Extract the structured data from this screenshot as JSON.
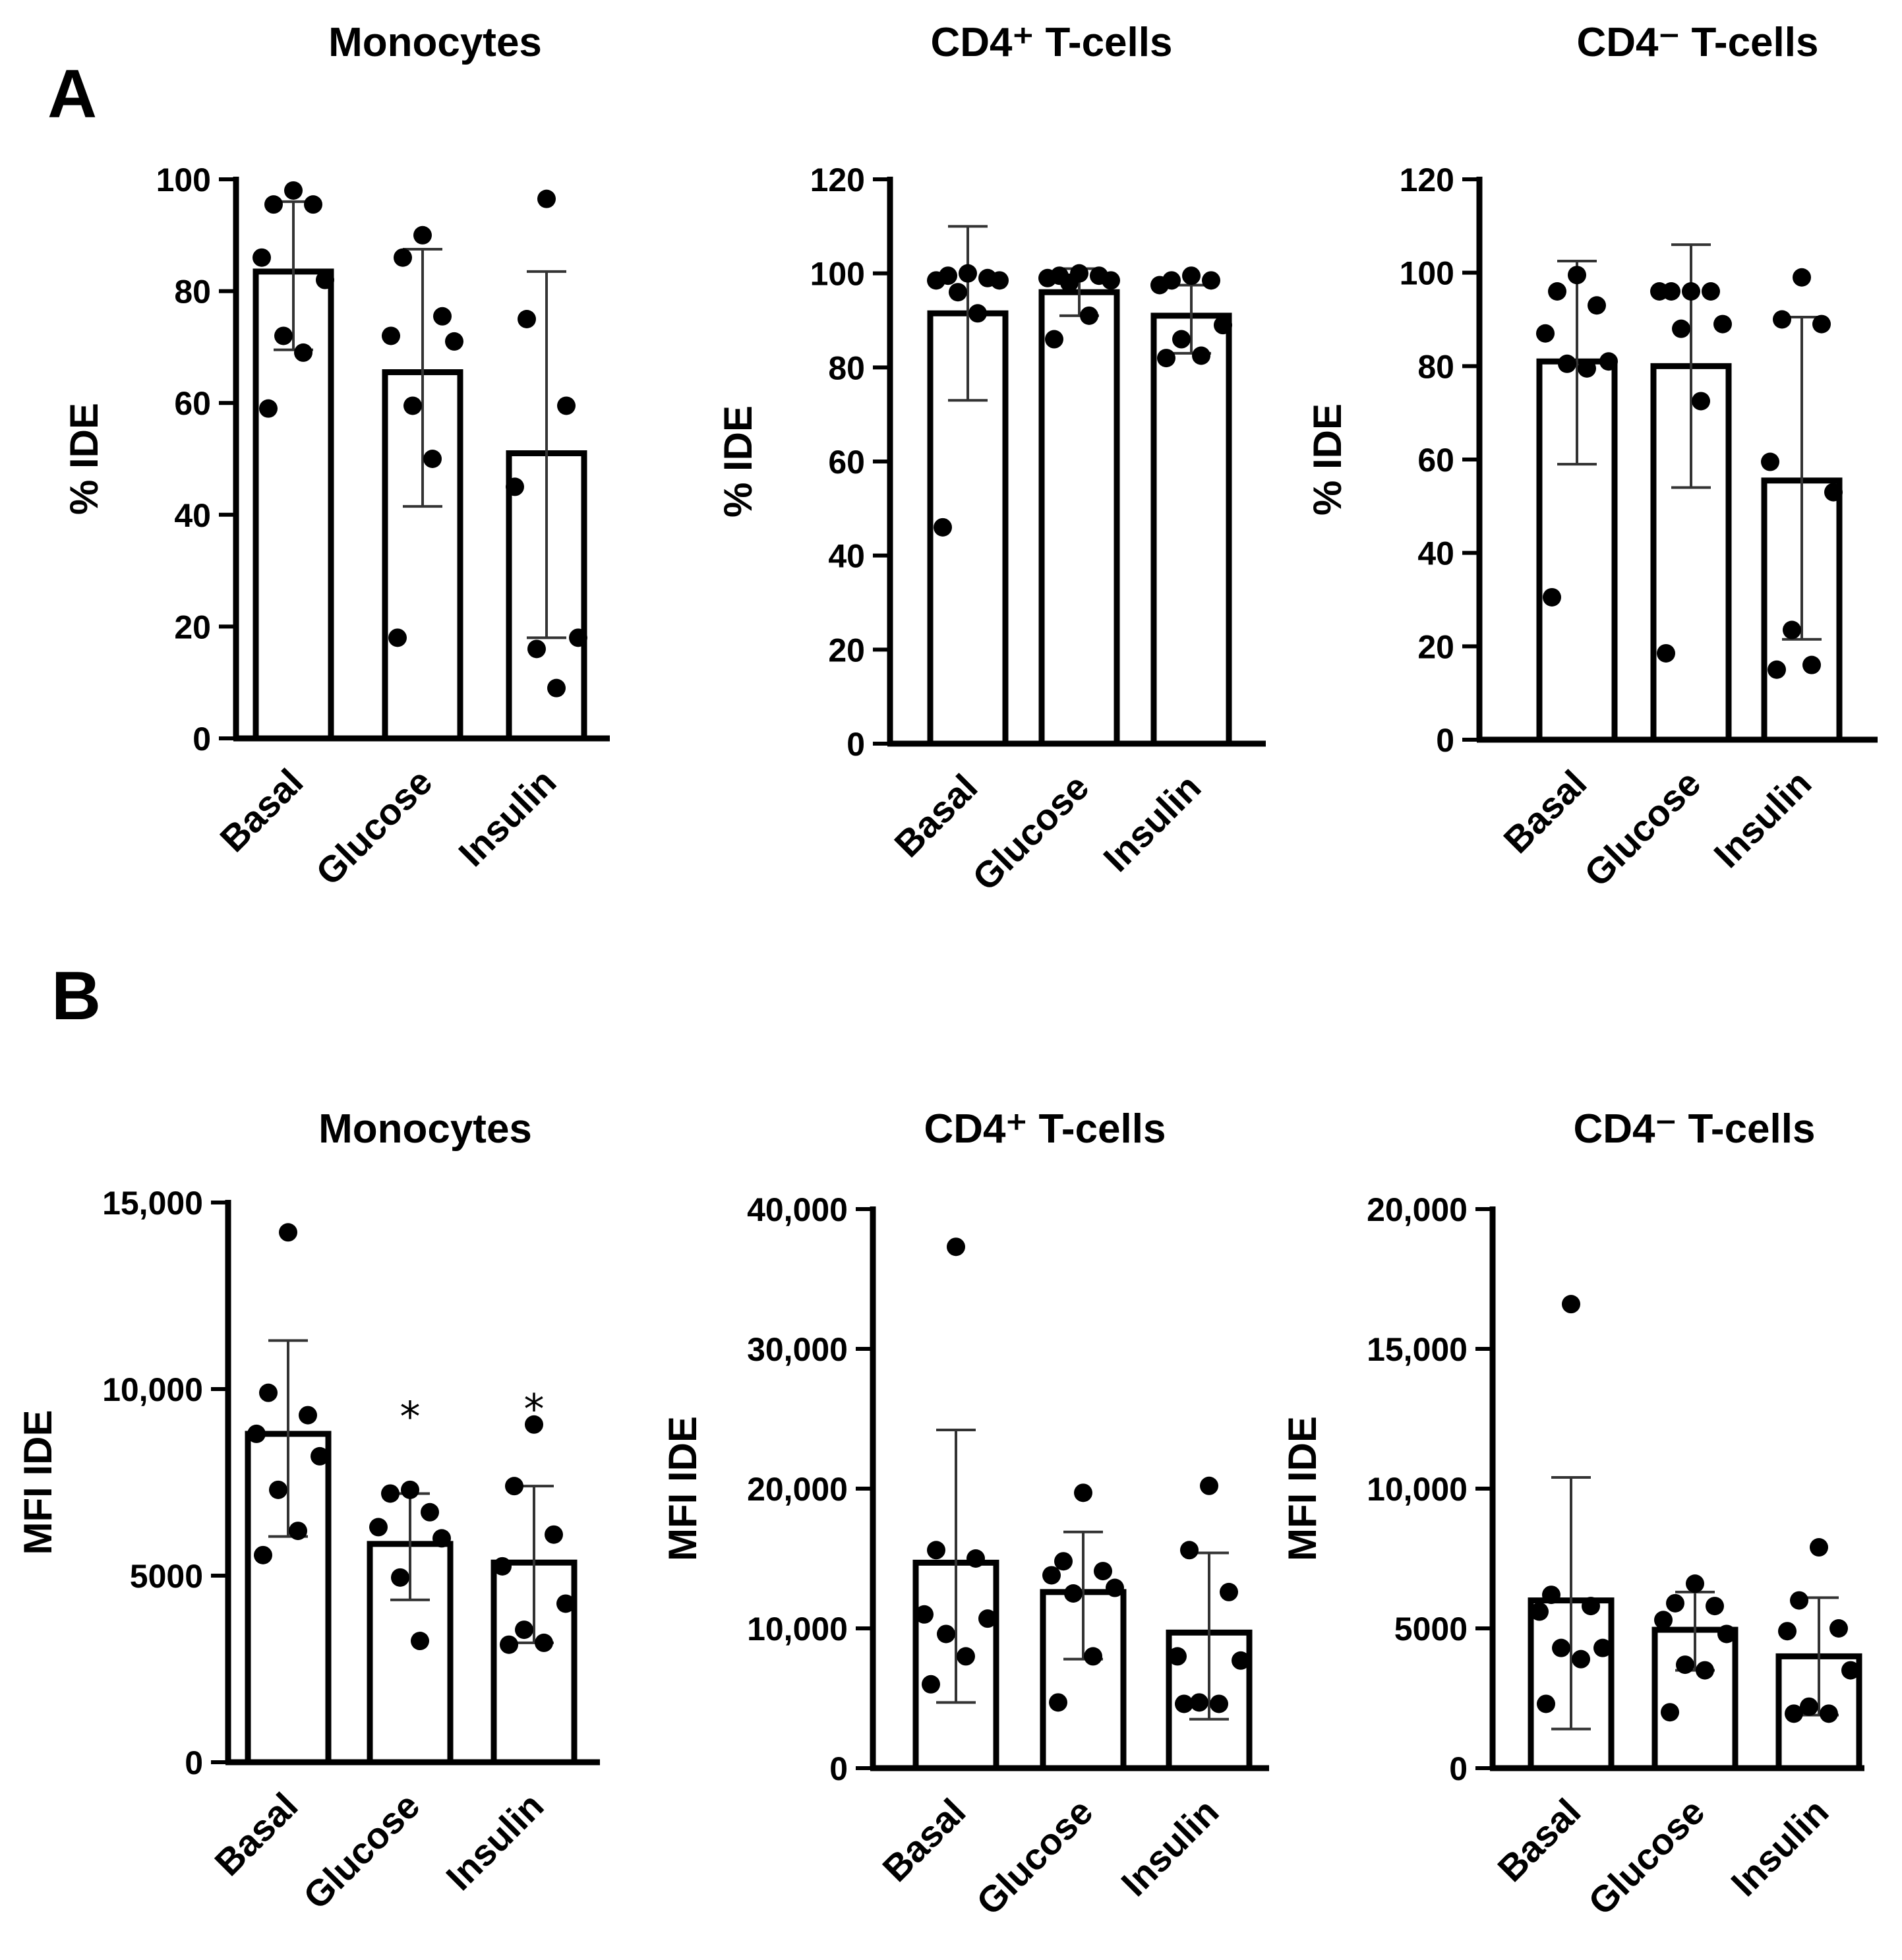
{
  "panels": {
    "a": "A",
    "b": "B"
  },
  "chart_data": [
    {
      "type": "bar",
      "panel": "A",
      "title": "Monocytes",
      "ylabel": "% IDE",
      "ylim": [
        0,
        100
      ],
      "yticks": [
        0,
        20,
        40,
        60,
        80,
        100
      ],
      "ytick_labels": [
        "0",
        "20",
        "40",
        "60",
        "80",
        "100"
      ],
      "categories": [
        "Basal",
        "Glucose",
        "Insulin"
      ],
      "values": [
        83.5,
        65.5,
        51
      ],
      "error_upper": [
        96,
        87.5,
        83.5
      ],
      "error_lower": [
        69.5,
        41.5,
        18
      ],
      "points": [
        [
          98,
          95.5,
          95.5,
          86,
          82,
          72,
          69,
          59
        ],
        [
          90,
          86,
          75.5,
          72,
          71,
          59.5,
          50,
          18
        ],
        [
          96.5,
          75,
          59.5,
          45,
          18,
          16,
          9
        ]
      ],
      "significance": [
        "",
        "",
        ""
      ]
    },
    {
      "type": "bar",
      "panel": "A",
      "title": "CD4⁺ T-cells",
      "ylabel": "% IDE",
      "ylim": [
        0,
        120
      ],
      "yticks": [
        0,
        20,
        40,
        60,
        80,
        100,
        120
      ],
      "ytick_labels": [
        "0",
        "20",
        "40",
        "60",
        "80",
        "100",
        "120"
      ],
      "categories": [
        "Basal",
        "Glucose",
        "Insulin"
      ],
      "values": [
        91.5,
        96,
        91
      ],
      "error_upper": [
        110,
        101,
        97.5
      ],
      "error_lower": [
        73,
        91,
        83
      ],
      "points": [
        [
          100,
          99.5,
          99,
          98.5,
          98.5,
          96,
          91.5,
          46
        ],
        [
          100,
          99.5,
          99.5,
          99,
          98.5,
          98,
          91,
          86
        ],
        [
          99.5,
          98.5,
          98.5,
          97.5,
          89,
          86,
          82.5,
          82
        ]
      ],
      "significance": [
        "",
        "",
        ""
      ]
    },
    {
      "type": "bar",
      "panel": "A",
      "title": "CD4⁻ T-cells",
      "ylabel": "% IDE",
      "ylim": [
        0,
        120
      ],
      "yticks": [
        0,
        20,
        40,
        60,
        80,
        100,
        120
      ],
      "ytick_labels": [
        "0",
        "20",
        "40",
        "60",
        "80",
        "100",
        "120"
      ],
      "categories": [
        "Basal",
        "Glucose",
        "Insulin"
      ],
      "values": [
        81,
        80,
        55.5
      ],
      "error_upper": [
        102.5,
        106,
        90.5
      ],
      "error_lower": [
        59,
        54,
        21.5
      ],
      "points": [
        [
          99.5,
          96,
          93,
          87,
          81,
          80.5,
          79.5,
          30.5
        ],
        [
          96,
          96,
          96,
          96,
          89,
          88,
          72.5,
          18.5
        ],
        [
          99,
          90,
          89,
          59.5,
          53,
          23.5,
          16,
          15
        ]
      ],
      "significance": [
        "",
        "",
        ""
      ]
    },
    {
      "type": "bar",
      "panel": "B",
      "title": "Monocytes",
      "ylabel": "MFI IDE",
      "ylim": [
        0,
        15000
      ],
      "yticks": [
        0,
        5000,
        10000,
        15000
      ],
      "ytick_labels": [
        "0",
        "5000",
        "10,000",
        "15,000"
      ],
      "categories": [
        "Basal",
        "Glucose",
        "Insulin"
      ],
      "values": [
        8800,
        5850,
        5350
      ],
      "error_upper": [
        11300,
        7200,
        7400
      ],
      "error_lower": [
        6050,
        4350,
        3200
      ],
      "points": [
        [
          14200,
          9900,
          9300,
          8800,
          8200,
          7300,
          6200,
          5550
        ],
        [
          7300,
          7200,
          6700,
          6300,
          6000,
          4950,
          3250
        ],
        [
          9050,
          7400,
          6100,
          5250,
          4250,
          3550,
          3200,
          3150
        ]
      ],
      "significance": [
        "",
        "*",
        "*"
      ]
    },
    {
      "type": "bar",
      "panel": "B",
      "title": "CD4⁺ T-cells",
      "ylabel": "MFI IDE",
      "ylim": [
        0,
        40000
      ],
      "yticks": [
        0,
        10000,
        20000,
        30000,
        40000
      ],
      "ytick_labels": [
        "0",
        "10,000",
        "20,000",
        "30,000",
        "40,000"
      ],
      "categories": [
        "Basal",
        "Glucose",
        "Insulin"
      ],
      "values": [
        14700,
        12600,
        9700
      ],
      "error_upper": [
        24200,
        16900,
        15400
      ],
      "error_lower": [
        4700,
        7800,
        3500
      ],
      "points": [
        [
          37300,
          15600,
          15000,
          11000,
          10700,
          9600,
          8000,
          6000
        ],
        [
          19700,
          14800,
          14100,
          13800,
          12900,
          12500,
          8000,
          4700
        ],
        [
          20200,
          15600,
          12600,
          8000,
          7700,
          4700,
          4600,
          4600
        ]
      ],
      "significance": [
        "",
        "",
        ""
      ]
    },
    {
      "type": "bar",
      "panel": "B",
      "title": "CD4⁻ T-cells",
      "ylabel": "MFI IDE",
      "ylim": [
        0,
        20000
      ],
      "yticks": [
        0,
        5000,
        10000,
        15000,
        20000
      ],
      "ytick_labels": [
        "0",
        "5000",
        "10,000",
        "15,000",
        "20,000"
      ],
      "categories": [
        "Basal",
        "Glucose",
        "Insulin"
      ],
      "values": [
        6000,
        4950,
        4000
      ],
      "error_upper": [
        10400,
        6300,
        6100
      ],
      "error_lower": [
        1400,
        3500,
        1900
      ],
      "points": [
        [
          16600,
          6200,
          5800,
          5600,
          4300,
          4300,
          3900,
          2300
        ],
        [
          6600,
          5900,
          5800,
          5300,
          4800,
          3700,
          3500,
          2000
        ],
        [
          7900,
          6000,
          5000,
          4900,
          3500,
          2200,
          1950,
          1950
        ]
      ],
      "significance": [
        "",
        "",
        ""
      ]
    }
  ]
}
